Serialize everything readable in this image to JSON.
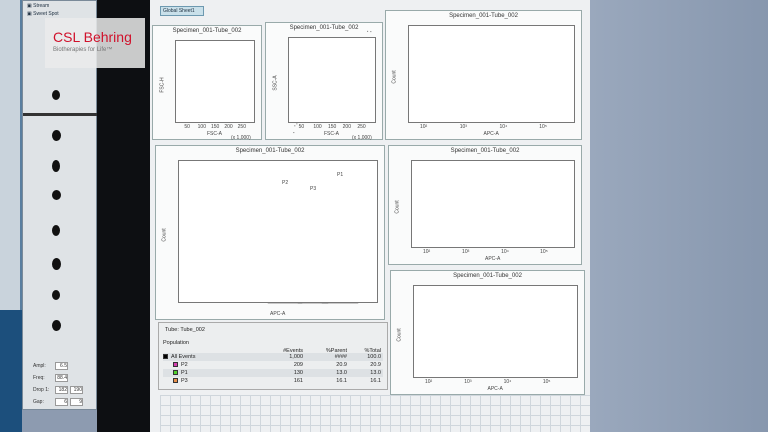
{
  "logo": {
    "name": "CSL Behring",
    "tagline": "Biotherapies for Life™"
  },
  "sidebar": {
    "items": [
      {
        "label": "Stream"
      },
      {
        "label": "Sweet Spot"
      }
    ]
  },
  "sheet_tab": "Global Sheet1",
  "drop_controls": [
    {
      "label": "Ampl:",
      "v1": "6.5"
    },
    {
      "label": "Freq:",
      "v1": "88.4"
    },
    {
      "label": "Drop 1:",
      "v1": "182",
      "v2": "190"
    },
    {
      "label": "Gap:",
      "v1": "6",
      "v2": "9"
    }
  ],
  "plots": {
    "scatter1": {
      "title": "Specimen_001-Tube_002",
      "xlabel": "FSC-A",
      "ylabel": "FSC-H",
      "unit": "(x 1,000)",
      "ticks": [
        "50",
        "100",
        "150",
        "200",
        "250"
      ]
    },
    "scatter2": {
      "title": "Specimen_001-Tube_002",
      "xlabel": "FSC-A",
      "ylabel": "SSC-A",
      "unit": "(x 1,000)",
      "ticks": [
        "50",
        "100",
        "150",
        "200",
        "250"
      ]
    },
    "hist_main": {
      "title": "Specimen_001-Tube_002",
      "xlabel": "APC-A",
      "ylabel": "Count",
      "gates": [
        "P2",
        "P3",
        "P1"
      ]
    },
    "hist_p2": {
      "title": "Specimen_001-Tube_002",
      "xlabel": "APC-A",
      "ylabel": "Count",
      "color": "#d63fb0"
    },
    "hist_p1": {
      "title": "Specimen_001-Tube_002",
      "xlabel": "APC-A",
      "ylabel": "Count",
      "color": "#4fd12a"
    },
    "hist_p3": {
      "title": "Specimen_001-Tube_002",
      "xlabel": "APC-A",
      "ylabel": "Count",
      "color": "#e8904a"
    },
    "log_ticks": [
      "10²",
      "10³",
      "10⁴",
      "10⁵"
    ]
  },
  "stats": {
    "tube_label": "Tube:",
    "tube": "Tube_002",
    "headers": [
      "Population",
      "#Events",
      "%Parent",
      "%Total"
    ],
    "rows": [
      {
        "name": "All Events",
        "color": "#000000",
        "events": "1,000",
        "parent": "####",
        "total": "100.0"
      },
      {
        "name": "P2",
        "color": "#d63fb0",
        "events": "209",
        "parent": "20.9",
        "total": "20.9"
      },
      {
        "name": "P1",
        "color": "#4fd12a",
        "events": "130",
        "parent": "13.0",
        "total": "13.0"
      },
      {
        "name": "P3",
        "color": "#e8904a",
        "events": "161",
        "parent": "16.1",
        "total": "16.1"
      }
    ]
  }
}
